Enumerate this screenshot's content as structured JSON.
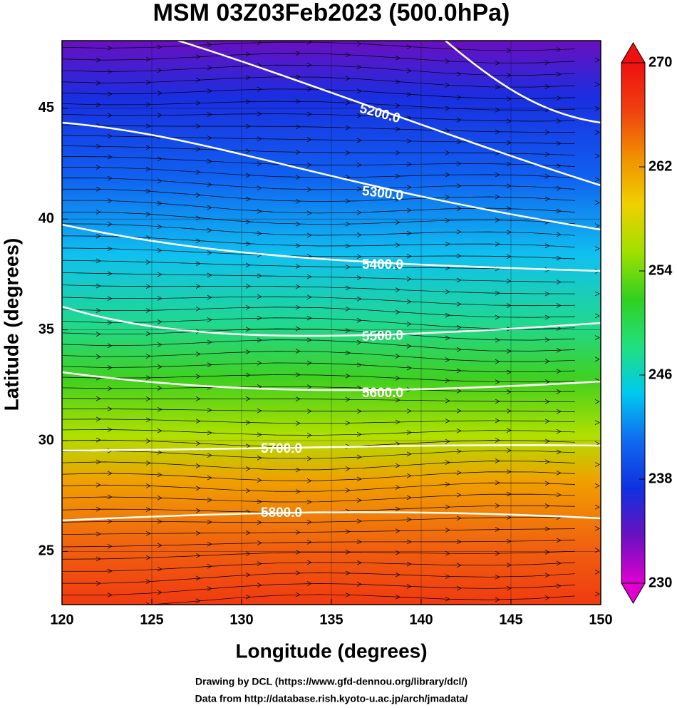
{
  "title": "MSM 03Z03Feb2023 (500.0hPa)",
  "x_axis": {
    "label": "Longitude (degrees)",
    "lim": [
      120,
      150
    ],
    "ticks": [
      120,
      125,
      130,
      135,
      140,
      145,
      150
    ]
  },
  "y_axis": {
    "label": "Latitude  (degrees)",
    "lim": [
      22.6,
      48.05
    ],
    "ticks": [
      25,
      30,
      35,
      40,
      45
    ]
  },
  "colorbar": {
    "lim": [
      230,
      270
    ],
    "ticks": [
      230,
      238,
      246,
      254,
      262,
      270
    ],
    "colors": [
      "#e000d0",
      "#6a10c0",
      "#1030e0",
      "#1068f0",
      "#00c8f0",
      "#20e080",
      "#30d020",
      "#a0e000",
      "#f0d000",
      "#f09000",
      "#f04010",
      "#f01010"
    ]
  },
  "contours": [
    "5200.0",
    "5300.0",
    "5400.0",
    "5500.0",
    "5600.0",
    "5700.0",
    "5800.0"
  ],
  "credits": [
    "Drawing by DCL (https://www.gfd-dennou.org/library/dcl/)",
    "Data from http://database.rish.kyoto-u.ac.jp/arch/jmadata/"
  ]
}
